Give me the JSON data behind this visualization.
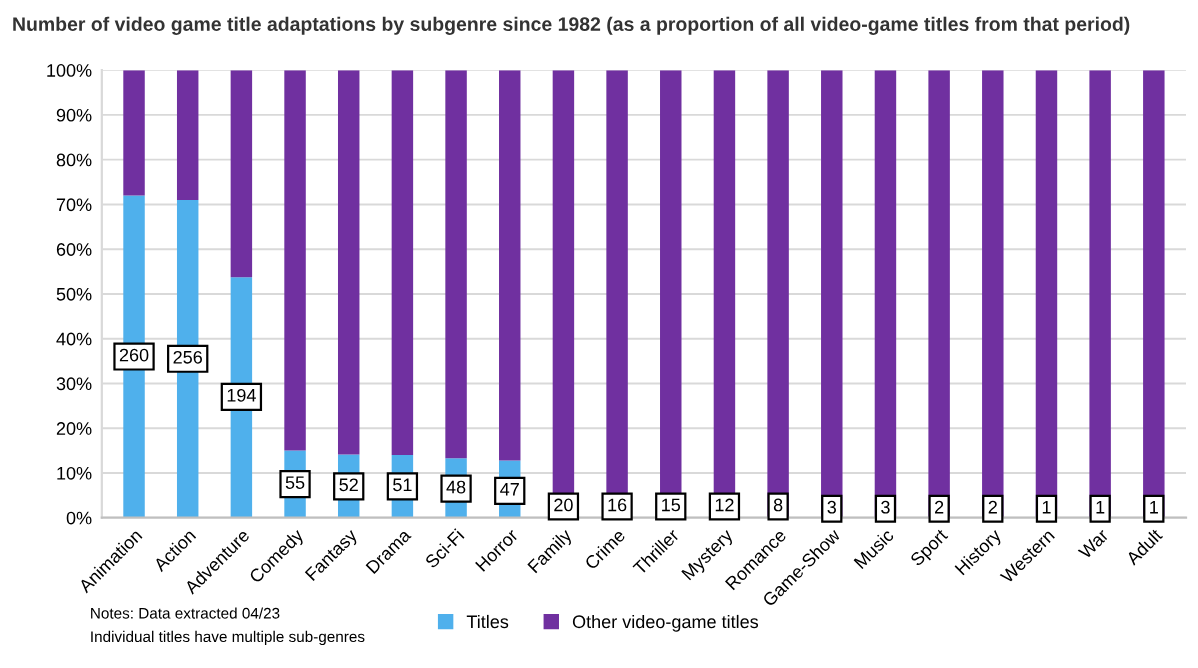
{
  "chart_data": {
    "type": "bar",
    "stacked": true,
    "title": "Number of video game title adaptations by subgenre since 1982 (as a proportion of all video-game titles from that period)",
    "categories": [
      "Animation",
      "Action",
      "Adventure",
      "Comedy",
      "Fantasy",
      "Drama",
      "Sci-Fi",
      "Horror",
      "Family",
      "Crime",
      "Thriller",
      "Mystery",
      "Romance",
      "Game-Show",
      "Music",
      "Sport",
      "History",
      "Western",
      "War",
      "Adult"
    ],
    "series": [
      {
        "name": "Titles",
        "color": "#4fb0ec",
        "values": [
          72,
          71,
          53.7,
          15,
          14.1,
          14,
          13.3,
          12.8,
          null,
          null,
          null,
          null,
          null,
          null,
          null,
          null,
          null,
          null,
          null,
          null
        ]
      },
      {
        "name": "Other video-game titles",
        "color": "#7030a0",
        "values": [
          28,
          29,
          46.3,
          85,
          85.9,
          86,
          86.7,
          87.2,
          100,
          100,
          100,
          100,
          100,
          100,
          100,
          100,
          100,
          100,
          100,
          100
        ]
      }
    ],
    "ylim": [
      0,
      100
    ],
    "yticks": [
      {
        "value": 0,
        "label": "0%"
      },
      {
        "value": 10,
        "label": "10%"
      },
      {
        "value": 20,
        "label": "20%"
      },
      {
        "value": 30,
        "label": "30%"
      },
      {
        "value": 40,
        "label": "40%"
      },
      {
        "value": 50,
        "label": "50%"
      },
      {
        "value": 60,
        "label": "60%"
      },
      {
        "value": 70,
        "label": "70%"
      },
      {
        "value": 80,
        "label": "80%"
      },
      {
        "value": 90,
        "label": "90%"
      },
      {
        "value": 100,
        "label": "100%"
      }
    ],
    "grid": "y",
    "legend": "bottom",
    "annotations": [
      {
        "text": "260",
        "x": "Animation",
        "y": 36
      },
      {
        "text": "256",
        "x": "Action",
        "y": 35.5
      },
      {
        "text": "194",
        "x": "Adventure",
        "y": 27
      },
      {
        "text": "55",
        "x": "Comedy",
        "y": 7.5
      },
      {
        "text": "52",
        "x": "Fantasy",
        "y": 7
      },
      {
        "text": "51",
        "x": "Drama",
        "y": 7
      },
      {
        "text": "48",
        "x": "Sci-Fi",
        "y": 6.5
      },
      {
        "text": "47",
        "x": "Horror",
        "y": 6
      },
      {
        "text": "20",
        "x": "Family",
        "y": 2.5
      },
      {
        "text": "16",
        "x": "Crime",
        "y": 2.5
      },
      {
        "text": "15",
        "x": "Thriller",
        "y": 2.5
      },
      {
        "text": "12",
        "x": "Mystery",
        "y": 2.5
      },
      {
        "text": "8",
        "x": "Romance",
        "y": 2.5
      },
      {
        "text": "3",
        "x": "Game-Show",
        "y": 2
      },
      {
        "text": "3",
        "x": "Music",
        "y": 2
      },
      {
        "text": "2",
        "x": "Sport",
        "y": 2
      },
      {
        "text": "2",
        "x": "History",
        "y": 2
      },
      {
        "text": "1",
        "x": "Western",
        "y": 2
      },
      {
        "text": "1",
        "x": "War",
        "y": 2
      },
      {
        "text": "1",
        "x": "Adult",
        "y": 2
      },
      "Notes: Data extracted 04/23",
      "Individual titles have multiple sub-genres"
    ]
  }
}
